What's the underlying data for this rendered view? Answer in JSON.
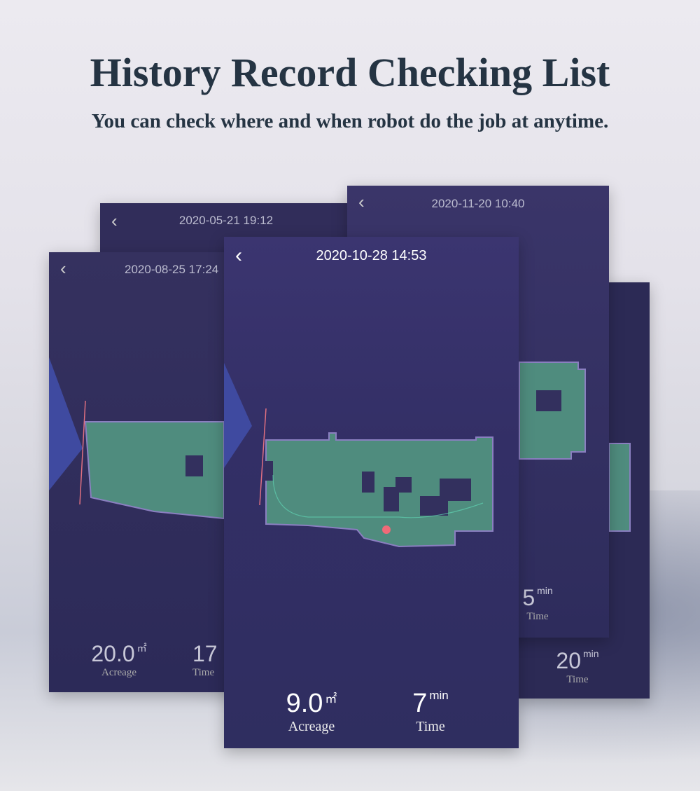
{
  "header": {
    "title": "History Record Checking List",
    "subtitle": "You can check where and when robot do the job at anytime."
  },
  "records": [
    {
      "date": "2020-05-21 19:12"
    },
    {
      "date": "2020-08-25 17:24",
      "acreage": "20.0",
      "acreage_unit": "㎡",
      "acreage_label": "Acreage",
      "time": "17",
      "time_label": "Time"
    },
    {
      "date": "2020-11-20 10:40",
      "time": "5",
      "time_unit": "min",
      "time_label": "Time"
    },
    {
      "time": "20",
      "time_unit": "min",
      "time_label": "Time"
    },
    {
      "date": "2020-10-28 14:53",
      "acreage": "9.0",
      "acreage_unit": "㎡",
      "acreage_label": "Acreage",
      "time": "7",
      "time_unit": "min",
      "time_label": "Time"
    }
  ],
  "icons": {
    "back": "chevron-left-icon"
  },
  "colors": {
    "card": "#33305e",
    "map_fill": "#4f8c7e",
    "map_border": "#8a7fc0",
    "robot": "#f06a78",
    "title": "#253443"
  }
}
